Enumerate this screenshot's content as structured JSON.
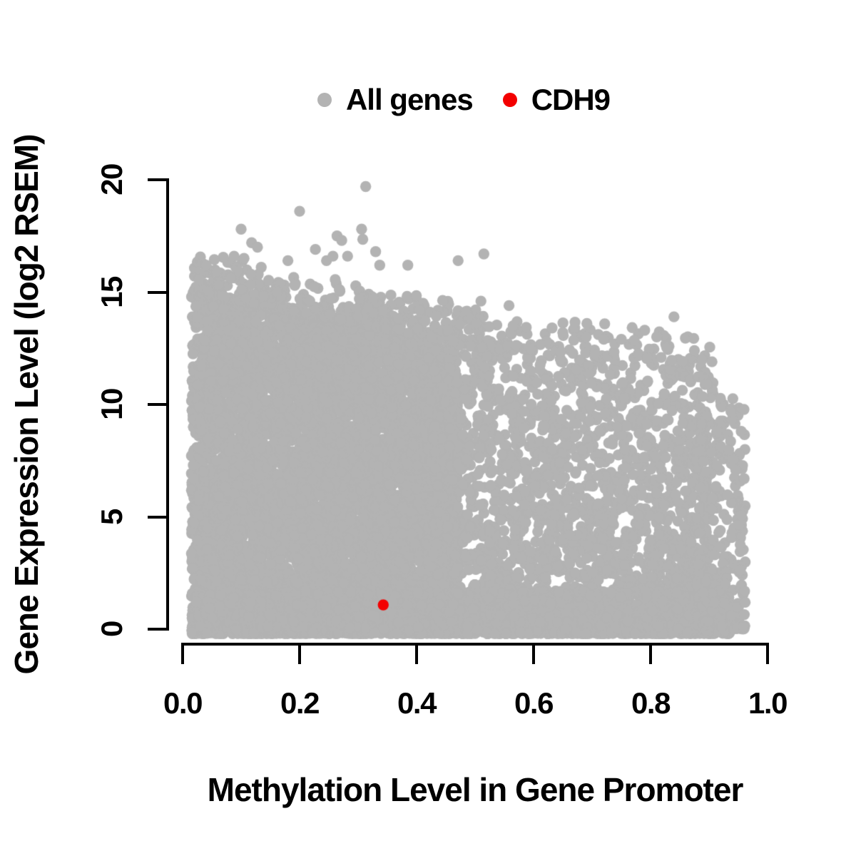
{
  "legend": {
    "items": [
      {
        "label": "All genes",
        "color": "#b3b3b3"
      },
      {
        "label": "CDH9",
        "color": "#f30000"
      }
    ]
  },
  "chart_data": {
    "type": "scatter",
    "title": "",
    "xlabel": "Methylation Level in Gene Promoter",
    "ylabel": "Gene Expression Level (log2 RSEM)",
    "xlim": [
      0,
      1
    ],
    "ylim": [
      0,
      20
    ],
    "xticks": [
      0,
      0.2,
      0.4,
      0.6,
      0.8,
      1.0
    ],
    "xtick_labels": [
      "0.0",
      "0.2",
      "0.4",
      "0.6",
      "0.8",
      "1.0"
    ],
    "yticks": [
      0,
      5,
      10,
      15,
      20
    ],
    "ytick_labels": [
      "0",
      "5",
      "10",
      "15",
      "20"
    ],
    "grid": false,
    "legend_position": "top-center",
    "point_radius_px": 7.7,
    "seed": 1337,
    "series": [
      {
        "name": "All genes",
        "color": "#b3b3b3",
        "marker": "filled-circle",
        "description": "Dense cloud of ~11000 genes; expression upper envelope declines as promoter methylation rises; solid block x 0.02-0.45 up to y~13-15, moderate cloud x 0.45-0.9 up to y~12, dense low-expression band y 0-2 across all x, right fringe to x~0.96",
        "cloud_layers": [
          {
            "name": "left-dense-block",
            "n": 6200,
            "x_range": [
              0.015,
              0.47
            ],
            "top": {
              "a": 14.9,
              "slope": -5.0,
              "x0": 0.04
            },
            "y_min": -0.15,
            "y_pow": 1.05
          },
          {
            "name": "mid-right-cloud",
            "n": 2400,
            "x_range": [
              0.42,
              0.9
            ],
            "top": {
              "a": 12.7,
              "slope": -1.8,
              "x0": 0.42
            },
            "y_min": -0.15,
            "y_pow": 1.75
          },
          {
            "name": "bottom-dense-band",
            "n": 2000,
            "x_range": [
              0.015,
              0.935
            ],
            "top": {
              "a": 1.7,
              "slope": 0,
              "x0": 0
            },
            "y_min": -0.2,
            "y_pow": 2.0
          },
          {
            "name": "left-top-fringe",
            "n": 380,
            "x_range": [
              0.02,
              0.52
            ],
            "top": {
              "a": 14.9,
              "slope": -5.0,
              "x0": 0.04
            },
            "fuzz": 1.8,
            "fuzz_pow": 2.3
          },
          {
            "name": "right-top-fringe",
            "n": 110,
            "x_range": [
              0.45,
              0.905
            ],
            "top": {
              "a": 12.7,
              "slope": -1.8,
              "x0": 0.42
            },
            "fuzz": 1.5,
            "fuzz_pow": 2.1
          },
          {
            "name": "right-edge-fringe",
            "n": 300,
            "x_range": [
              0.88,
              0.962
            ],
            "top": {
              "a": 11.5,
              "slope": -20.0,
              "x0": 0.88
            },
            "y_min": -0.1,
            "y_pow": 1.35
          }
        ],
        "outlier_points": [
          [
            0.313,
            19.7
          ],
          [
            0.2,
            18.6
          ],
          [
            0.306,
            17.8
          ],
          [
            0.308,
            17.35
          ],
          [
            0.1,
            17.8
          ],
          [
            0.264,
            17.5
          ],
          [
            0.272,
            17.3
          ],
          [
            0.118,
            17.2
          ],
          [
            0.128,
            17.0
          ],
          [
            0.227,
            16.9
          ],
          [
            0.33,
            16.8
          ],
          [
            0.088,
            16.6
          ],
          [
            0.105,
            16.5
          ],
          [
            0.18,
            16.4
          ],
          [
            0.471,
            16.4
          ],
          [
            0.515,
            16.7
          ],
          [
            0.246,
            16.4
          ],
          [
            0.257,
            16.6
          ],
          [
            0.282,
            16.6
          ],
          [
            0.337,
            16.2
          ],
          [
            0.385,
            16.2
          ],
          [
            0.04,
            16.2
          ],
          [
            0.058,
            15.9
          ],
          [
            0.51,
            14.6
          ],
          [
            0.558,
            14.4
          ],
          [
            0.492,
            13.8
          ],
          [
            0.502,
            13.6
          ],
          [
            0.65,
            13.2
          ],
          [
            0.69,
            13.0
          ],
          [
            0.72,
            12.9
          ],
          [
            0.75,
            12.9
          ],
          [
            0.772,
            12.85
          ],
          [
            0.84,
            13.9
          ],
          [
            0.79,
            13.3
          ],
          [
            0.875,
            12.4
          ],
          [
            0.905,
            11.9
          ],
          [
            0.955,
            8.8
          ],
          [
            0.96,
            6.7
          ]
        ]
      },
      {
        "name": "CDH9",
        "color": "#f30000",
        "marker": "filled-circle",
        "points": [
          [
            0.343,
            1.08
          ]
        ]
      }
    ]
  }
}
